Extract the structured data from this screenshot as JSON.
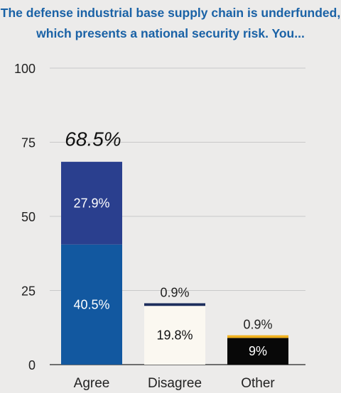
{
  "chart_data": {
    "type": "bar",
    "stacked": true,
    "title": "The defense industrial base supply chain is underfunded, which presents a national security risk. You...",
    "categories": [
      "Agree",
      "Disagree",
      "Other"
    ],
    "ylim": [
      0,
      100
    ],
    "yticks": [
      0,
      25,
      50,
      75,
      100
    ],
    "grid": true,
    "segments": [
      {
        "category": "Agree",
        "value": 40.5,
        "label": "40.5%",
        "color": "#1258a0",
        "text_color": "#ffffff",
        "label_position": "inside"
      },
      {
        "category": "Agree",
        "value": 27.9,
        "label": "27.9%",
        "color": "#2a3f8e",
        "text_color": "#ffffff",
        "label_position": "inside"
      },
      {
        "category": "Disagree",
        "value": 19.8,
        "label": "19.8%",
        "color": "#fbf8f1",
        "text_color": "#111111",
        "label_position": "inside"
      },
      {
        "category": "Disagree",
        "value": 0.9,
        "label": "0.9%",
        "color": "#1d2e5c",
        "text_color": "#222222",
        "label_position": "above"
      },
      {
        "category": "Other",
        "value": 9,
        "label": "9%",
        "color": "#080808",
        "text_color": "#ffffff",
        "label_position": "inside"
      },
      {
        "category": "Other",
        "value": 0.9,
        "label": "0.9%",
        "color": "#f2b21e",
        "text_color": "#222222",
        "label_position": "above"
      }
    ],
    "totals": [
      {
        "category": "Agree",
        "value": 68.5,
        "label": "68.5%"
      }
    ]
  }
}
